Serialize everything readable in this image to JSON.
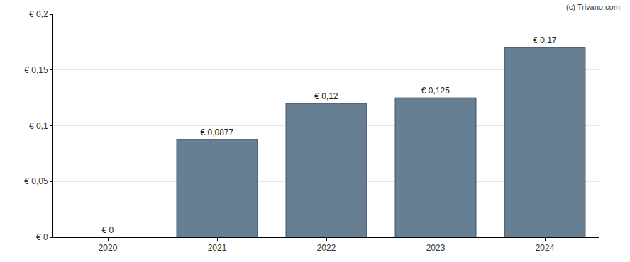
{
  "chart_data": {
    "type": "bar",
    "categories": [
      "2020",
      "2021",
      "2022",
      "2023",
      "2024"
    ],
    "values": [
      0,
      0.0877,
      0.12,
      0.125,
      0.17
    ],
    "value_labels": [
      "€ 0",
      "€ 0,0877",
      "€ 0,12",
      "€ 0,125",
      "€ 0,17"
    ],
    "data_labels": true,
    "color": "#667f93",
    "ylim": [
      0,
      0.2
    ],
    "yticks": [
      {
        "value": 0,
        "label": "€ 0"
      },
      {
        "value": 0.05,
        "label": "€ 0,05"
      },
      {
        "value": 0.1,
        "label": "€ 0,1"
      },
      {
        "value": 0.15,
        "label": "€ 0,15"
      },
      {
        "value": 0.2,
        "label": "€ 0,2"
      }
    ],
    "grid": true,
    "annotations": [
      "(c) Trivano.com"
    ]
  }
}
